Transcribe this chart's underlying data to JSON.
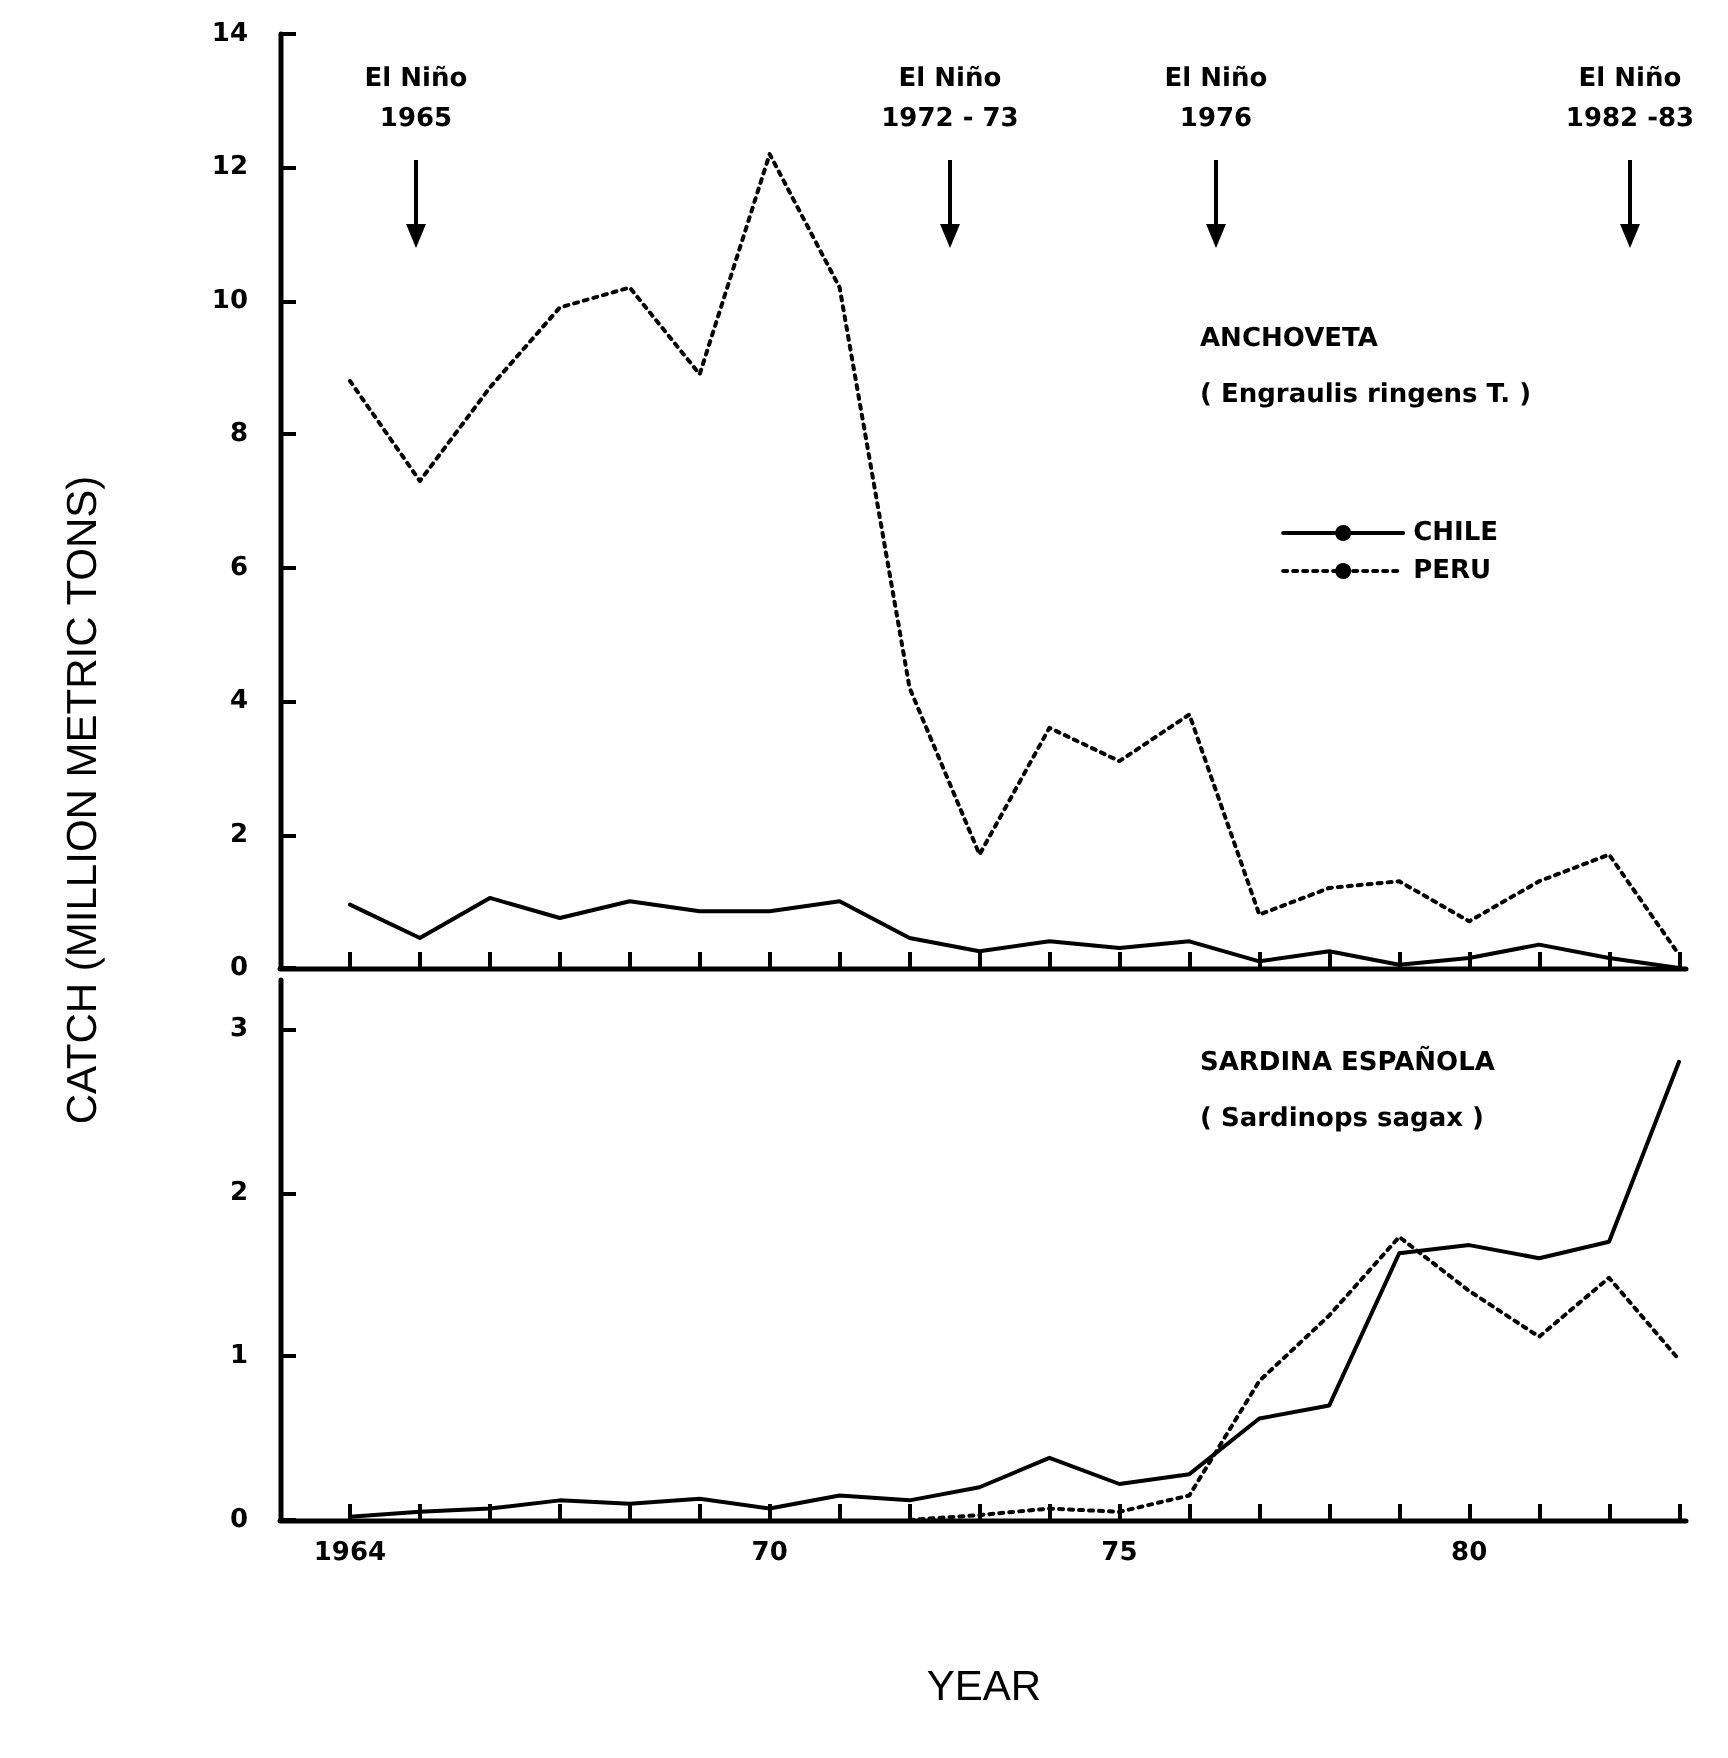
{
  "chart_data": [
    {
      "type": "line",
      "ylabel": "CATCH (MILLION METRIC TONS)",
      "x": [
        1964,
        1965,
        1966,
        1967,
        1968,
        1969,
        1970,
        1971,
        1972,
        1973,
        1974,
        1975,
        1976,
        1977,
        1978,
        1979,
        1980,
        1981,
        1982,
        1983
      ],
      "series": [
        {
          "name": "CHILE",
          "color": "#000000",
          "line_style": "solid",
          "values": [
            0.95,
            0.45,
            1.05,
            0.75,
            1.0,
            0.85,
            0.85,
            1.0,
            0.45,
            0.25,
            0.4,
            0.3,
            0.4,
            0.1,
            0.25,
            0.05,
            0.15,
            0.35,
            0.15,
            0
          ]
        },
        {
          "name": "PERU",
          "color": "#000000",
          "line_style": "dotted",
          "values": [
            8.8,
            7.3,
            8.7,
            9.9,
            10.2,
            8.9,
            12.2,
            10.2,
            4.2,
            1.7,
            3.6,
            3.1,
            3.8,
            0.8,
            1.2,
            1.3,
            0.7,
            1.3,
            1.7,
            0.2
          ]
        }
      ],
      "xlim": [
        1963,
        1983.1
      ],
      "xticks": [
        {
          "value": 1964,
          "label": null
        },
        {
          "value": 1965,
          "label": null
        },
        {
          "value": 1966,
          "label": null
        },
        {
          "value": 1967,
          "label": null
        },
        {
          "value": 1968,
          "label": null
        },
        {
          "value": 1969,
          "label": null
        },
        {
          "value": 1970,
          "label": null
        },
        {
          "value": 1971,
          "label": null
        },
        {
          "value": 1972,
          "label": null
        },
        {
          "value": 1973,
          "label": null
        },
        {
          "value": 1974,
          "label": null
        },
        {
          "value": 1975,
          "label": null
        },
        {
          "value": 1976,
          "label": null
        },
        {
          "value": 1977,
          "label": null
        },
        {
          "value": 1978,
          "label": null
        },
        {
          "value": 1979,
          "label": null
        },
        {
          "value": 1980,
          "label": null
        },
        {
          "value": 1981,
          "label": null
        },
        {
          "value": 1982,
          "label": null
        },
        {
          "value": 1983,
          "label": null
        }
      ],
      "ylim": [
        0,
        14
      ],
      "yticks": [
        0,
        2,
        4,
        6,
        8,
        10,
        12,
        14
      ],
      "tick_labels": "y",
      "legend": "right",
      "marker": "none",
      "grid": false,
      "annotations": [
        "El Niño\n1965",
        "El Niño\n1972 - 73",
        "El Niño\n1976",
        "El Niño\n1982 -83",
        "ANCHOVETA",
        "( Engraulis ringens T. )"
      ]
    },
    {
      "type": "line",
      "xlabel": "YEAR",
      "x": [
        1964,
        1965,
        1966,
        1967,
        1968,
        1969,
        1970,
        1971,
        1972,
        1973,
        1974,
        1975,
        1976,
        1977,
        1978,
        1979,
        1980,
        1981,
        1982,
        1983
      ],
      "series": [
        {
          "color": "#000000",
          "line_style": "solid",
          "values": [
            0.02,
            0.05,
            0.07,
            0.12,
            0.1,
            0.13,
            0.07,
            0.15,
            0.12,
            0.2,
            0.38,
            0.22,
            0.28,
            0.62,
            0.7,
            1.63,
            1.68,
            1.6,
            1.7,
            2.8
          ]
        },
        {
          "color": "#000000",
          "line_style": "dotted",
          "values": [
            null,
            null,
            null,
            null,
            null,
            null,
            null,
            null,
            0,
            0.03,
            0.07,
            0.05,
            0.15,
            0.85,
            1.25,
            1.73,
            1.4,
            1.12,
            1.48,
            0.98
          ]
        }
      ],
      "xlim": [
        1963,
        1983.1
      ],
      "xticks": [
        {
          "value": 1964,
          "label": "1964"
        },
        {
          "value": 1965,
          "label": null
        },
        {
          "value": 1966,
          "label": null
        },
        {
          "value": 1967,
          "label": null
        },
        {
          "value": 1968,
          "label": null
        },
        {
          "value": 1969,
          "label": null
        },
        {
          "value": 1970,
          "label": "70"
        },
        {
          "value": 1971,
          "label": null
        },
        {
          "value": 1972,
          "label": null
        },
        {
          "value": 1973,
          "label": null
        },
        {
          "value": 1974,
          "label": null
        },
        {
          "value": 1975,
          "label": "75"
        },
        {
          "value": 1976,
          "label": null
        },
        {
          "value": 1977,
          "label": null
        },
        {
          "value": 1978,
          "label": null
        },
        {
          "value": 1979,
          "label": null
        },
        {
          "value": 1980,
          "label": "80"
        },
        {
          "value": 1981,
          "label": null
        },
        {
          "value": 1982,
          "label": null
        },
        {
          "value": 1983,
          "label": null
        }
      ],
      "ylim": [
        0,
        3.3
      ],
      "yticks": [
        0,
        1,
        2,
        3
      ],
      "marker": "none",
      "grid": false,
      "annotations": [
        "SARDINA ESPAÑOLA",
        "( Sardinops sagax )"
      ]
    }
  ]
}
